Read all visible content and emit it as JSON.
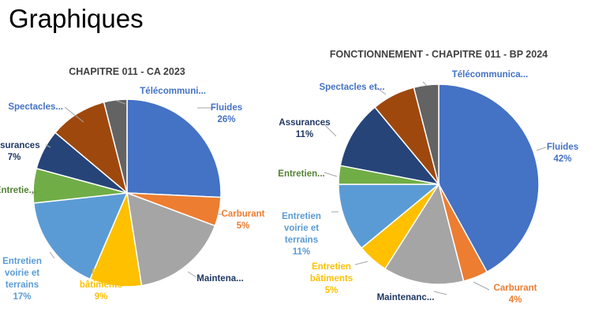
{
  "page_title": "Graphiques",
  "chart_data": [
    {
      "type": "pie",
      "title": "CHAPITRE 011 - CA 2023",
      "slices": [
        {
          "name": "Fluides",
          "value": 26,
          "label_lines": [
            "Fluides",
            "26%"
          ],
          "color": "#4472C4"
        },
        {
          "name": "Carburant",
          "value": 5,
          "label_lines": [
            "Carburant",
            "5%"
          ],
          "color": "#ED7D31"
        },
        {
          "name": "Maintena...",
          "value": 17,
          "label_lines": [
            "Maintena..."
          ],
          "color": "#A5A5A5"
        },
        {
          "name": "Entretien bâtiments",
          "value": 9,
          "label_lines": [
            "Entr",
            "bâtiments",
            "9%"
          ],
          "color": "#FFC000"
        },
        {
          "name": "Entretien voirie et terrains",
          "value": 17,
          "label_lines": [
            "Entretien",
            "voirie et",
            "terrains",
            "17%"
          ],
          "color": "#5B9BD5"
        },
        {
          "name": "Entretie...",
          "value": 6,
          "label_lines": [
            "Entretie..."
          ],
          "color": "#70AD47"
        },
        {
          "name": "Assurances",
          "value": 7,
          "label_lines": [
            "Assurances",
            "7%"
          ],
          "color": "#264478"
        },
        {
          "name": "Spectacles...",
          "value": 10,
          "label_lines": [
            "Spectacles..."
          ],
          "color": "#9E480E"
        },
        {
          "name": "Télécommuni...",
          "value": 4,
          "label_lines": [
            "Télécommuni..."
          ],
          "color": "#636363"
        }
      ]
    },
    {
      "type": "pie",
      "title": "FONCTIONNEMENT - CHAPITRE 011 - BP 2024",
      "slices": [
        {
          "name": "Fluides",
          "value": 42,
          "label_lines": [
            "Fluides",
            "42%"
          ],
          "color": "#4472C4"
        },
        {
          "name": "Carburant",
          "value": 4,
          "label_lines": [
            "Carburant",
            "4%"
          ],
          "color": "#ED7D31"
        },
        {
          "name": "Maintenanc...",
          "value": 13,
          "label_lines": [
            "Maintenanc..."
          ],
          "color": "#A5A5A5"
        },
        {
          "name": "Entretien bâtiments",
          "value": 5,
          "label_lines": [
            "Entretien",
            "bâtiments",
            "5%"
          ],
          "color": "#FFC000"
        },
        {
          "name": "Entretien voirie et terrains",
          "value": 11,
          "label_lines": [
            "Entretien",
            "voirie et",
            "terrains",
            "11%"
          ],
          "color": "#5B9BD5"
        },
        {
          "name": "Entretien...",
          "value": 3,
          "label_lines": [
            "Entretien..."
          ],
          "color": "#70AD47"
        },
        {
          "name": "Assurances",
          "value": 11,
          "label_lines": [
            "Assurances",
            "11%"
          ],
          "color": "#264478"
        },
        {
          "name": "Spectacles et...",
          "value": 7,
          "label_lines": [
            "Spectacles et..."
          ],
          "color": "#9E480E"
        },
        {
          "name": "Télécommunica...",
          "value": 4,
          "label_lines": [
            "Télécommunica..."
          ],
          "color": "#636363"
        }
      ]
    }
  ]
}
